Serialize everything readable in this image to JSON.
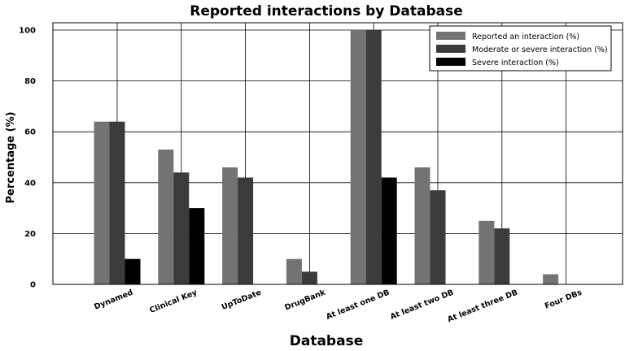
{
  "chart_data": {
    "type": "bar",
    "title": "Reported interactions by Database",
    "xlabel": "Database",
    "ylabel": "Percentage (%)",
    "ylim": [
      0,
      100
    ],
    "yticks": [
      0,
      20,
      40,
      60,
      80,
      100
    ],
    "grid": true,
    "legend_position": "top-right",
    "categories": [
      "Dynamed",
      "Clinical Key",
      "UpToDate",
      "DrugBank",
      "At least one DB",
      "At least two DB",
      "At least three DB",
      "Four DBs"
    ],
    "series": [
      {
        "name": "Reported an interaction (%)",
        "color": "#737373",
        "values": [
          64,
          53,
          46,
          10,
          100,
          46,
          25,
          4
        ]
      },
      {
        "name": "Moderate or severe interaction (%)",
        "color": "#3b3b3b",
        "values": [
          64,
          44,
          42,
          5,
          100,
          37,
          22,
          0
        ]
      },
      {
        "name": "Severe interaction (%)",
        "color": "#000000",
        "values": [
          10,
          30,
          0,
          0,
          42,
          0,
          0,
          0
        ]
      }
    ]
  }
}
